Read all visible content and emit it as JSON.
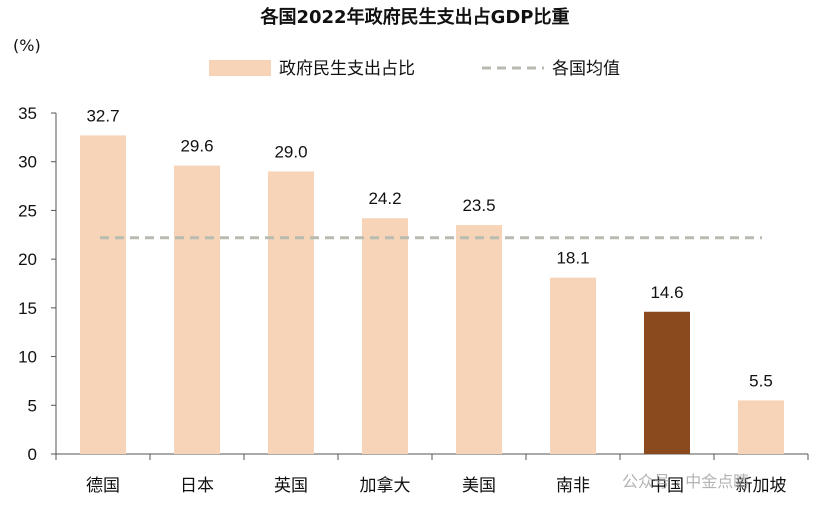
{
  "chart_data": {
    "type": "bar",
    "title": "各国2022年政府民生支出占GDP比重",
    "unit_label": "(%)",
    "categories": [
      "德国",
      "日本",
      "英国",
      "加拿大",
      "美国",
      "南非",
      "中国",
      "新加坡"
    ],
    "series": [
      {
        "name": "政府民生支出占比",
        "values": [
          32.7,
          29.6,
          29.0,
          24.2,
          23.5,
          18.1,
          14.6,
          5.5
        ]
      }
    ],
    "value_labels": [
      "32.7",
      "29.6",
      "29.0",
      "24.2",
      "23.5",
      "18.1",
      "14.6",
      "5.5"
    ],
    "reference_line": {
      "name": "各国均值",
      "value": 22.2,
      "style": "dashed"
    },
    "ylim": [
      0,
      35
    ],
    "yticks": [
      0,
      5,
      10,
      15,
      20,
      25,
      30,
      35
    ],
    "ytick_labels": [
      "0",
      "5",
      "10",
      "15",
      "20",
      "25",
      "30",
      "35"
    ],
    "legend_position": "top-center",
    "grid": false,
    "highlight_category": "中国",
    "colors": {
      "bar": "#f7d4b8",
      "highlight": "#8b4a1d",
      "reference_line": "#b8bbb0",
      "axis": "#555555"
    }
  },
  "watermark": "公众号 · 中金点睛"
}
